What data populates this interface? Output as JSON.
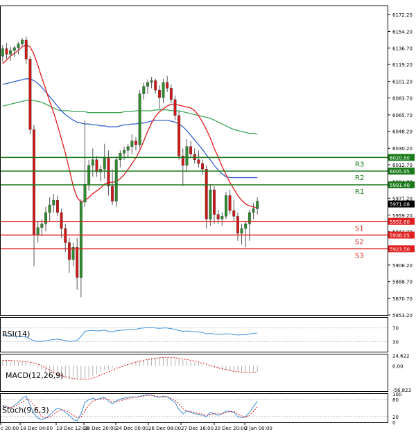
{
  "chart_data": {
    "type": "candlestick",
    "main": {
      "y_range": [
        5853.2,
        6181.0
      ],
      "y_ticks": [
        "6172.20",
        "6154.20",
        "6136.70",
        "6119.20",
        "6101.20",
        "6083.70",
        "6065.70",
        "6048.20",
        "6030.20",
        "6012.70",
        "5994.70",
        "5977.20",
        "5959.20",
        "5941.70",
        "5923.70",
        "5906.20",
        "5888.70",
        "5870.70",
        "5853.20"
      ],
      "candles": [
        [
          6128,
          6140,
          6122,
          6136
        ],
        [
          6136,
          6142,
          6125,
          6130
        ],
        [
          6130,
          6138,
          6123,
          6134
        ],
        [
          6134,
          6139,
          6127,
          6137
        ],
        [
          6137,
          6143,
          6130,
          6141
        ],
        [
          6141,
          6147,
          6138,
          6145
        ],
        [
          6145,
          6149,
          6120,
          6125
        ],
        [
          6125,
          6128,
          6045,
          6050
        ],
        [
          6050,
          6055,
          5905,
          5938
        ],
        [
          5938,
          5952,
          5930,
          5946
        ],
        [
          5946,
          5955,
          5937,
          5950
        ],
        [
          5950,
          5968,
          5942,
          5962
        ],
        [
          5962,
          5978,
          5952,
          5970
        ],
        [
          5970,
          5982,
          5962,
          5975
        ],
        [
          5975,
          5980,
          5958,
          5962
        ],
        [
          5962,
          5966,
          5935,
          5945
        ],
        [
          5945,
          5950,
          5920,
          5930
        ],
        [
          5930,
          5935,
          5898,
          5912
        ],
        [
          5912,
          5930,
          5905,
          5925
        ],
        [
          5925,
          5935,
          5880,
          5893
        ],
        [
          5893,
          5976,
          5872,
          5973
        ],
        [
          5973,
          6060,
          5968,
          5992
        ],
        [
          5992,
          6018,
          5985,
          6012
        ],
        [
          6012,
          6030,
          6000,
          6018
        ],
        [
          6018,
          6022,
          6000,
          6005
        ],
        [
          6005,
          6012,
          5995,
          6008
        ],
        [
          6008,
          6035,
          5998,
          6020
        ],
        [
          6020,
          6028,
          5980,
          5990
        ],
        [
          5990,
          6008,
          5970,
          5974
        ],
        [
          5974,
          6022,
          5968,
          6018
        ],
        [
          6018,
          6028,
          6010,
          6025
        ],
        [
          6025,
          6032,
          6018,
          6028
        ],
        [
          6028,
          6035,
          6020,
          6032
        ],
        [
          6032,
          6045,
          6024,
          6038
        ],
        [
          6038,
          6042,
          6028,
          6034
        ],
        [
          6034,
          6092,
          6030,
          6088
        ],
        [
          6088,
          6100,
          6082,
          6096
        ],
        [
          6096,
          6103,
          6088,
          6100
        ],
        [
          6100,
          6106,
          6094,
          6102
        ],
        [
          6102,
          6104,
          6088,
          6092
        ],
        [
          6092,
          6097,
          6072,
          6084
        ],
        [
          6084,
          6104,
          6078,
          6100
        ],
        [
          6100,
          6107,
          6090,
          6094
        ],
        [
          6094,
          6098,
          6078,
          6082
        ],
        [
          6082,
          6086,
          6060,
          6065
        ],
        [
          6065,
          6070,
          6018,
          6022
        ],
        [
          6022,
          6030,
          5990,
          6012
        ],
        [
          6012,
          6040,
          6005,
          6032
        ],
        [
          6032,
          6038,
          6020,
          6024
        ],
        [
          6024,
          6030,
          6014,
          6018
        ],
        [
          6018,
          6028,
          6010,
          6014
        ],
        [
          6014,
          6018,
          6002,
          6008
        ],
        [
          6008,
          6012,
          5945,
          5955
        ],
        [
          5955,
          5992,
          5948,
          5986
        ],
        [
          5986,
          5990,
          5950,
          5960
        ],
        [
          5960,
          5965,
          5950,
          5955
        ],
        [
          5955,
          5962,
          5948,
          5958
        ],
        [
          5958,
          5984,
          5955,
          5980
        ],
        [
          5980,
          5986,
          5960,
          5964
        ],
        [
          5964,
          5975,
          5952,
          5958
        ],
        [
          5958,
          5962,
          5932,
          5940
        ],
        [
          5940,
          5950,
          5928,
          5945
        ],
        [
          5945,
          5952,
          5925,
          5950
        ],
        [
          5950,
          5965,
          5932,
          5962
        ],
        [
          5962,
          5972,
          5955,
          5966
        ],
        [
          5966,
          5978,
          5960,
          5974
        ]
      ],
      "ma_red": [
        6120,
        6124,
        6128,
        6131,
        6134,
        6138,
        6140,
        6138,
        6130,
        6118,
        6105,
        6093,
        6080,
        6068,
        6055,
        6040,
        6025,
        6008,
        5990,
        5978,
        5973,
        5975,
        5978,
        5982,
        5985,
        5988,
        5992,
        5994,
        5994,
        5995,
        5998,
        6002,
        6008,
        6014,
        6020,
        6028,
        6038,
        6048,
        6057,
        6064,
        6069,
        6072,
        6075,
        6077,
        6077,
        6076,
        6075,
        6074,
        6073,
        6070,
        6065,
        6058,
        6050,
        6041,
        6030,
        6021,
        6011,
        6002,
        5994,
        5987,
        5980,
        5975,
        5971,
        5969,
        5968,
        5967
      ],
      "ma_blue": [
        6098,
        6099,
        6100,
        6101,
        6102,
        6103,
        6104,
        6104,
        6102,
        6099,
        6095,
        6090,
        6085,
        6080,
        6075,
        6070,
        6066,
        6063,
        6060,
        6058,
        6057,
        6056,
        6056,
        6055,
        6055,
        6054,
        6054,
        6053,
        6053,
        6053,
        6054,
        6055,
        6055,
        6056,
        6056,
        6057,
        6057,
        6058,
        6059,
        6060,
        6060,
        6060,
        6060,
        6059,
        6058,
        6056,
        6053,
        6049,
        6044,
        6039,
        6034,
        6029,
        6023,
        6018,
        6012,
        6007,
        6003,
        6000,
        5999,
        5999,
        5999,
        5999,
        5999,
        5999,
        5999,
        5999
      ],
      "ma_green": [
        6075,
        6076,
        6077,
        6078,
        6079,
        6080,
        6081,
        6081,
        6081,
        6080,
        6079,
        6077,
        6075,
        6073,
        6071,
        6070,
        6070,
        6070,
        6069,
        6069,
        6069,
        6069,
        6068,
        6068,
        6068,
        6068,
        6068,
        6068,
        6068,
        6068,
        6068,
        6069,
        6069,
        6069,
        6070,
        6070,
        6070,
        6070,
        6070,
        6071,
        6071,
        6071,
        6071,
        6070,
        6070,
        6070,
        6069,
        6068,
        6067,
        6066,
        6065,
        6064,
        6063,
        6062,
        6060,
        6058,
        6056,
        6054,
        6052,
        6050,
        6049,
        6048,
        6047,
        6046,
        6046,
        6045
      ],
      "levels": [
        {
          "value": 6020.5,
          "label": "6020.50",
          "name": "R3",
          "color": "#1a7a1a"
        },
        {
          "value": 6005.95,
          "label": "6005.95",
          "name": "R2",
          "color": "#1a7a1a"
        },
        {
          "value": 5991.4,
          "label": "5991.40",
          "name": "R1",
          "color": "#1a7a1a"
        },
        {
          "value": 5952.6,
          "label": "5952.60",
          "name": "S1",
          "color": "#e02020"
        },
        {
          "value": 5938.05,
          "label": "5938.05",
          "name": "S2",
          "color": "#e02020"
        },
        {
          "value": 5923.5,
          "label": "5923.50",
          "name": "S3",
          "color": "#e02020"
        }
      ],
      "current_price": {
        "value": 5971.08,
        "label": "5971.08"
      }
    },
    "rsi": {
      "label": "RSI(14)",
      "y_range": [
        0,
        100
      ],
      "ticks": [
        "70",
        "30"
      ],
      "values": [
        48,
        47,
        47,
        46,
        45,
        44,
        44,
        38,
        32,
        30,
        31,
        32,
        34,
        36,
        37,
        35,
        33,
        30,
        31,
        33,
        45,
        60,
        62,
        63,
        61,
        62,
        64,
        60,
        58,
        62,
        63,
        64,
        65,
        66,
        66,
        69,
        70,
        71,
        71,
        70,
        69,
        70,
        70,
        68,
        66,
        62,
        60,
        61,
        60,
        59,
        58,
        57,
        52,
        54,
        52,
        51,
        51,
        53,
        52,
        51,
        49,
        50,
        50,
        52,
        54,
        55
      ]
    },
    "macd": {
      "label": "MACD(12,26,9)",
      "ticks": [
        "24.622",
        "0.00",
        "-56.823"
      ],
      "y_range": [
        -60,
        27
      ],
      "histogram": [
        14,
        14,
        13,
        12,
        11,
        10,
        9,
        6,
        2,
        -4,
        -10,
        -15,
        -19,
        -22,
        -25,
        -27,
        -29,
        -31,
        -32,
        -33,
        -32,
        -30,
        -27,
        -23,
        -19,
        -15,
        -11,
        -8,
        -5,
        -2,
        0,
        3,
        6,
        8,
        11,
        13,
        15,
        17,
        18,
        19,
        20,
        20,
        20,
        19,
        18,
        16,
        14,
        12,
        10,
        8,
        6,
        4,
        1,
        -2,
        -5,
        -7,
        -9,
        -11,
        -12,
        -13,
        -14,
        -14,
        -15,
        -15,
        -15,
        -15
      ],
      "signal": [
        13,
        13,
        13,
        12,
        12,
        11,
        10,
        9,
        7,
        4,
        0,
        -5,
        -10,
        -15,
        -19,
        -23,
        -26,
        -28,
        -30,
        -31,
        -32,
        -32,
        -31,
        -29,
        -26,
        -22,
        -18,
        -14,
        -10,
        -6,
        -3,
        0,
        3,
        6,
        9,
        11,
        13,
        15,
        17,
        18,
        19,
        20,
        20,
        20,
        19,
        18,
        16,
        15,
        13,
        11,
        9,
        6,
        4,
        1,
        -2,
        -5,
        -7,
        -9,
        -11,
        -13,
        -14,
        -15,
        -15,
        -16,
        -16,
        -16
      ]
    },
    "stoch": {
      "label": "Stoch(9,6,3)",
      "ticks": [
        "100",
        "80",
        "20",
        "0"
      ],
      "y_range": [
        0,
        100
      ],
      "k": [
        60,
        55,
        50,
        60,
        70,
        85,
        92,
        60,
        30,
        15,
        10,
        15,
        25,
        40,
        50,
        45,
        35,
        25,
        10,
        5,
        30,
        70,
        80,
        85,
        80,
        85,
        88,
        75,
        65,
        75,
        82,
        85,
        88,
        90,
        88,
        92,
        95,
        97,
        96,
        90,
        88,
        92,
        90,
        80,
        70,
        45,
        30,
        40,
        35,
        30,
        28,
        25,
        20,
        35,
        30,
        25,
        30,
        40,
        38,
        35,
        20,
        15,
        20,
        35,
        55,
        75
      ],
      "d": [
        55,
        55,
        52,
        55,
        62,
        72,
        80,
        78,
        60,
        40,
        20,
        15,
        18,
        28,
        38,
        45,
        42,
        35,
        25,
        15,
        18,
        40,
        60,
        75,
        80,
        82,
        84,
        80,
        72,
        72,
        76,
        80,
        84,
        87,
        88,
        90,
        92,
        95,
        95,
        93,
        90,
        90,
        90,
        85,
        78,
        65,
        48,
        40,
        38,
        35,
        32,
        28,
        25,
        28,
        30,
        30,
        30,
        35,
        38,
        38,
        30,
        22,
        18,
        25,
        38,
        55
      ]
    },
    "x_labels": [
      "c 20:00",
      "18 Dec 04:00",
      "19 Dec 12:00",
      "20 Dec 20:00",
      "24 Dec 00:00",
      "26 Dec 08:00",
      "27 Dec 16:00",
      "30 Dec 20:00",
      "2 Jan 00:00"
    ]
  }
}
